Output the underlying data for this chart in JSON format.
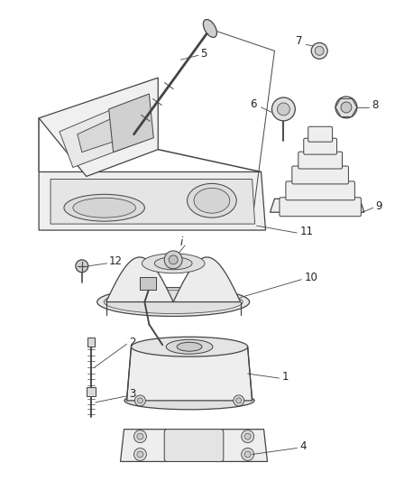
{
  "bg_color": "#ffffff",
  "line_color": "#444444",
  "lw": 0.9,
  "fig_w": 4.38,
  "fig_h": 5.33,
  "dpi": 100
}
